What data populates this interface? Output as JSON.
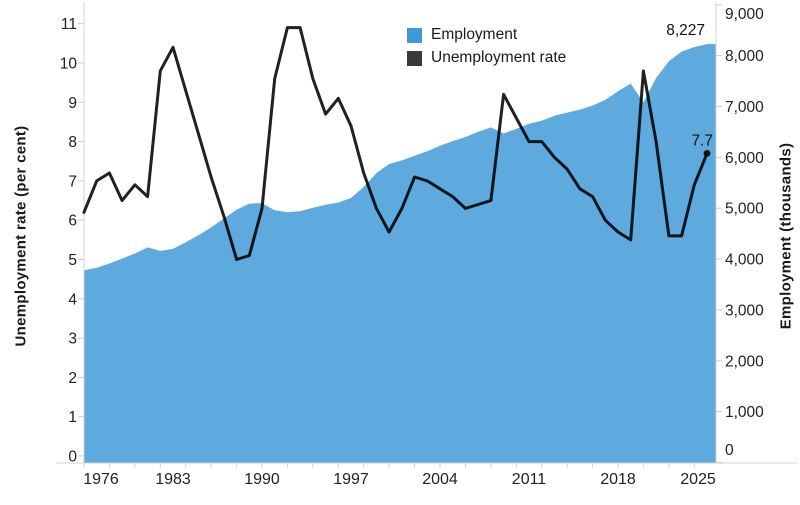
{
  "chart_data": {
    "type": "area+line",
    "title": "",
    "x": [
      1976,
      1977,
      1978,
      1979,
      1980,
      1981,
      1982,
      1983,
      1984,
      1985,
      1986,
      1987,
      1988,
      1989,
      1990,
      1991,
      1992,
      1993,
      1994,
      1995,
      1996,
      1997,
      1998,
      1999,
      2000,
      2001,
      2002,
      2003,
      2004,
      2005,
      2006,
      2007,
      2008,
      2009,
      2010,
      2011,
      2012,
      2013,
      2014,
      2015,
      2016,
      2017,
      2018,
      2019,
      2020,
      2021,
      2022,
      2023,
      2024,
      2025
    ],
    "series": [
      {
        "name": "Employment",
        "type": "area",
        "axis": "right",
        "legend_color": "#3f99d6",
        "fill_opacity": 0.84,
        "values": [
          3780,
          3830,
          3910,
          4010,
          4110,
          4230,
          4160,
          4200,
          4330,
          4470,
          4620,
          4800,
          4970,
          5090,
          5100,
          4960,
          4920,
          4940,
          5010,
          5070,
          5110,
          5200,
          5420,
          5690,
          5870,
          5940,
          6030,
          6120,
          6230,
          6320,
          6400,
          6500,
          6590,
          6470,
          6560,
          6660,
          6720,
          6820,
          6880,
          6940,
          7020,
          7130,
          7300,
          7450,
          7080,
          7560,
          7890,
          8080,
          8170,
          8227
        ]
      },
      {
        "name": "Unemployment rate",
        "type": "line",
        "axis": "left",
        "legend_color": "#3a3a3a",
        "stroke": "#000000",
        "stroke_opacity": 0.87,
        "values": [
          6.2,
          7.0,
          7.2,
          6.5,
          6.9,
          6.6,
          9.8,
          10.4,
          9.3,
          8.2,
          7.1,
          6.1,
          5.0,
          5.1,
          6.3,
          9.6,
          10.9,
          10.9,
          9.6,
          8.7,
          9.1,
          8.4,
          7.2,
          6.3,
          5.7,
          6.3,
          7.1,
          7.0,
          6.8,
          6.6,
          6.3,
          6.4,
          6.5,
          9.2,
          8.6,
          8.0,
          8.0,
          7.6,
          7.3,
          6.8,
          6.6,
          6.0,
          5.7,
          5.5,
          9.8,
          8.0,
          5.6,
          5.6,
          6.9,
          7.7
        ]
      }
    ],
    "left_axis": {
      "title": "Unemployment rate (per cent)",
      "min": 0,
      "max": 11,
      "tick_labels": [
        "0",
        "1",
        "2",
        "3",
        "4",
        "5",
        "6",
        "7",
        "8",
        "9",
        "10",
        "11"
      ]
    },
    "right_axis": {
      "title": "Employment (thousands)",
      "min": 0,
      "max": 9000,
      "tick_labels": [
        "0",
        "1,000",
        "2,000",
        "3,000",
        "4,000",
        "5,000",
        "6,000",
        "7,000",
        "8,000",
        "9,000"
      ]
    },
    "x_axis": {
      "min": 1976,
      "max": 2025,
      "tick_labels": [
        "1976",
        "1983",
        "1990",
        "1997",
        "2004",
        "2011",
        "2018",
        "2025"
      ],
      "minor_tick_step_years": 2
    },
    "annotations": [
      {
        "text": "8,227",
        "series": "Employment",
        "year": 2025
      },
      {
        "text": "7.7",
        "series": "Unemployment rate",
        "year": 2025,
        "marker": "dot"
      }
    ],
    "legend_position": "top-center",
    "grid": "off"
  },
  "colors": {
    "background": "#ffffff",
    "axis_line": "#d4d4d4",
    "tick": "#cccccc",
    "tick_label_text": "#222222",
    "annotation_text": "#111111",
    "area_rendered": "#64aeda"
  }
}
